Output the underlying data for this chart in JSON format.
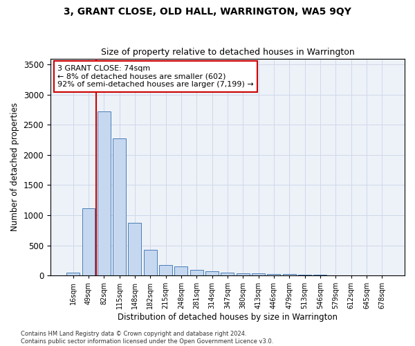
{
  "title": "3, GRANT CLOSE, OLD HALL, WARRINGTON, WA5 9QY",
  "subtitle": "Size of property relative to detached houses in Warrington",
  "xlabel": "Distribution of detached houses by size in Warrington",
  "ylabel": "Number of detached properties",
  "categories": [
    "16sqm",
    "49sqm",
    "82sqm",
    "115sqm",
    "148sqm",
    "182sqm",
    "215sqm",
    "248sqm",
    "281sqm",
    "314sqm",
    "347sqm",
    "380sqm",
    "413sqm",
    "446sqm",
    "479sqm",
    "513sqm",
    "546sqm",
    "579sqm",
    "612sqm",
    "645sqm",
    "678sqm"
  ],
  "values": [
    50,
    1110,
    2720,
    2270,
    870,
    420,
    170,
    155,
    90,
    65,
    50,
    40,
    30,
    25,
    20,
    10,
    8,
    5,
    3,
    2,
    2
  ],
  "bar_color": "#c5d8f0",
  "bar_edge_color": "#4a7db5",
  "vline_color": "#cc0000",
  "annotation_text": "3 GRANT CLOSE: 74sqm\n← 8% of detached houses are smaller (602)\n92% of semi-detached houses are larger (7,199) →",
  "annotation_box_color": "#ffffff",
  "annotation_box_edge_color": "#cc0000",
  "ylim": [
    0,
    3600
  ],
  "yticks": [
    0,
    500,
    1000,
    1500,
    2000,
    2500,
    3000,
    3500
  ],
  "grid_color": "#d0d8e8",
  "bg_color": "#edf2f9",
  "footer_line1": "Contains HM Land Registry data © Crown copyright and database right 2024.",
  "footer_line2": "Contains public sector information licensed under the Open Government Licence v3.0.",
  "title_fontsize": 10,
  "subtitle_fontsize": 9,
  "xlabel_fontsize": 8.5,
  "ylabel_fontsize": 8.5
}
